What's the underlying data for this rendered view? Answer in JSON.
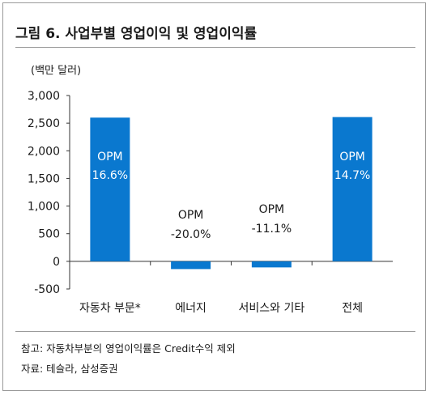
{
  "figure": {
    "title": "그림 6. 사업부별 영업이익 및 영업이익률",
    "notes": [
      "참고: 자동차부분의 영업이익률은 Credit수익 제외",
      "자료: 테슬라, 삼성증권"
    ]
  },
  "colors": {
    "bar": "#0a78cf",
    "axis": "#333333",
    "text": "#1a1a1a",
    "label_on_bar": "#ffffff"
  },
  "chart_data": {
    "type": "bar",
    "title": "",
    "unit_label": "(백만 달러)",
    "categories": [
      "자동차 부문*",
      "에너지",
      "서비스와 기타",
      "전체"
    ],
    "values": [
      2600,
      -140,
      -110,
      2610
    ],
    "annotations": [
      {
        "line1": "OPM",
        "line2": "16.6%",
        "inside": true
      },
      {
        "line1": "OPM",
        "line2": "-20.0%",
        "inside": false
      },
      {
        "line1": "OPM",
        "line2": "-11.1%",
        "inside": false
      },
      {
        "line1": "OPM",
        "line2": "14.7%",
        "inside": true
      }
    ],
    "ylim": [
      -500,
      3000
    ],
    "yticks": [
      -500,
      0,
      500,
      1000,
      1500,
      2000,
      2500,
      3000
    ],
    "ytick_labels": [
      "-500",
      "0",
      "500",
      "1,000",
      "1,500",
      "2,000",
      "2,500",
      "3,000"
    ],
    "grid": false,
    "legend": "none"
  }
}
